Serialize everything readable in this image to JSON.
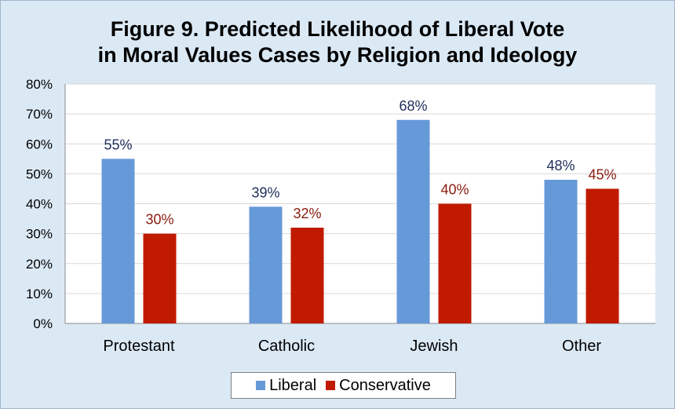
{
  "chart_data": {
    "type": "bar",
    "title_line1": "Figure 9.  Predicted Likelihood of Liberal Vote",
    "title_line2": "in Moral Values Cases by Religion and Ideology",
    "categories": [
      "Protestant",
      "Catholic",
      "Jewish",
      "Other"
    ],
    "series": [
      {
        "name": "Liberal",
        "values": [
          55,
          39,
          68,
          48
        ],
        "labels": [
          "55%",
          "39%",
          "68%",
          "48%"
        ],
        "color": "#6699d8",
        "label_color": "#1f2d5a"
      },
      {
        "name": "Conservative",
        "values": [
          30,
          32,
          40,
          45
        ],
        "labels": [
          "30%",
          "32%",
          "40%",
          "45%"
        ],
        "color": "#c01a00",
        "label_color": "#8b1a0e"
      }
    ],
    "ylim": [
      0,
      80
    ],
    "yticks": [
      0,
      10,
      20,
      30,
      40,
      50,
      60,
      70,
      80
    ],
    "ytick_labels": [
      "0%",
      "10%",
      "20%",
      "30%",
      "40%",
      "50%",
      "60%",
      "70%",
      "80%"
    ],
    "grid": true,
    "legend_position": "bottom"
  }
}
